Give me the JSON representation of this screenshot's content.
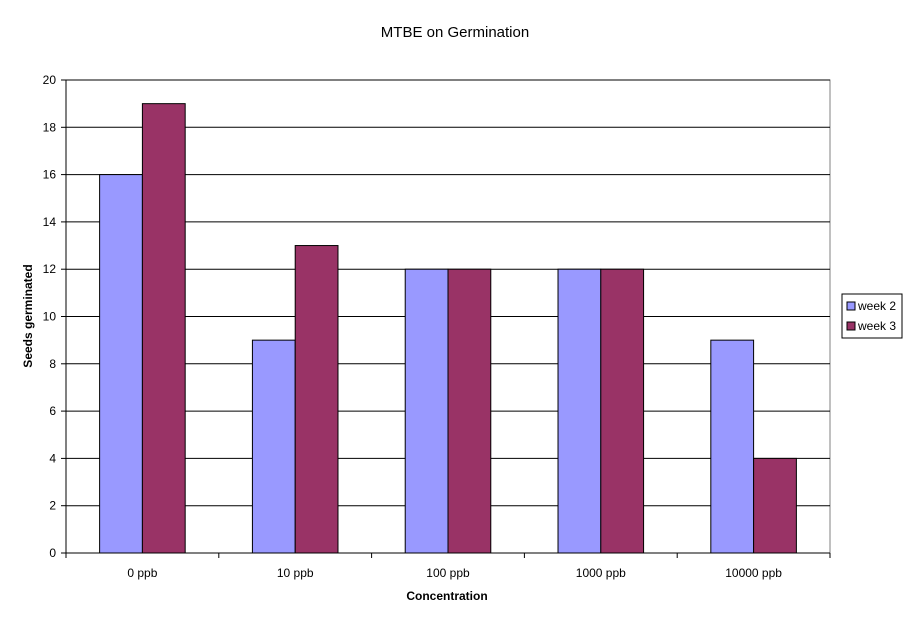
{
  "chart_data": {
    "type": "bar",
    "title": "MTBE on Germination",
    "xlabel": "Concentration",
    "ylabel": "Seeds germinated",
    "categories": [
      "0 ppb",
      "10 ppb",
      "100 ppb",
      "1000 ppb",
      "10000 ppb"
    ],
    "series": [
      {
        "name": "week 2",
        "values": [
          16,
          9,
          12,
          12,
          9
        ],
        "color": "#9999ff"
      },
      {
        "name": "week 3",
        "values": [
          19,
          13,
          12,
          12,
          4
        ],
        "color": "#993366"
      }
    ],
    "ylim": [
      0,
      20
    ],
    "yticks": [
      "0",
      "2",
      "4",
      "6",
      "8",
      "10",
      "12",
      "14",
      "16",
      "18",
      "20"
    ],
    "grid": true,
    "legend_position": "right",
    "plot_background": "#ffffff"
  }
}
